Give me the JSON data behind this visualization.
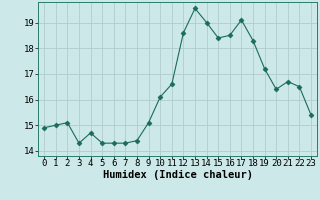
{
  "x": [
    0,
    1,
    2,
    3,
    4,
    5,
    6,
    7,
    8,
    9,
    10,
    11,
    12,
    13,
    14,
    15,
    16,
    17,
    18,
    19,
    20,
    21,
    22,
    23
  ],
  "y": [
    14.9,
    15.0,
    15.1,
    14.3,
    14.7,
    14.3,
    14.3,
    14.3,
    14.4,
    15.1,
    16.1,
    16.6,
    18.6,
    19.55,
    19.0,
    18.4,
    18.5,
    19.1,
    18.3,
    17.2,
    16.4,
    16.7,
    16.5,
    15.4
  ],
  "line_color": "#1a6b5a",
  "marker": "D",
  "marker_size": 2.5,
  "bg_color": "#cce8e8",
  "grid_color": "#b0cccc",
  "xlabel": "Humidex (Indice chaleur)",
  "ylim": [
    13.8,
    19.8
  ],
  "xlim": [
    -0.5,
    23.5
  ],
  "yticks": [
    14,
    15,
    16,
    17,
    18,
    19
  ],
  "xticks": [
    0,
    1,
    2,
    3,
    4,
    5,
    6,
    7,
    8,
    9,
    10,
    11,
    12,
    13,
    14,
    15,
    16,
    17,
    18,
    19,
    20,
    21,
    22,
    23
  ],
  "xlabel_fontsize": 7.5,
  "tick_fontsize": 6.5,
  "spine_color": "#2a7a6a"
}
